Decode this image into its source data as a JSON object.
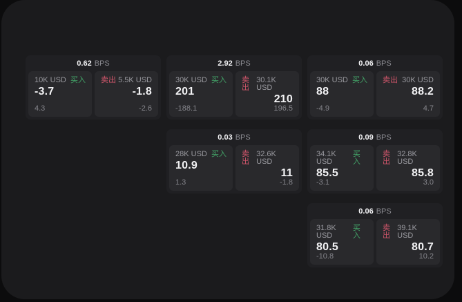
{
  "labels": {
    "bps_unit": "BPS",
    "buy": "买入",
    "sell": "卖出"
  },
  "colors": {
    "window_bg": "#1b1b1d",
    "card_bg": "#202023",
    "panel_bg": "#29292c",
    "buy_green": "#43a368",
    "sell_red": "#d0566b"
  },
  "cards": [
    {
      "bps": "0.62",
      "buy": {
        "amount": "10K USD",
        "price": "-3.7",
        "sub": "4.3"
      },
      "sell": {
        "amount": "5.5K USD",
        "price": "-1.8",
        "sub": "-2.6"
      }
    },
    {
      "bps": "2.92",
      "buy": {
        "amount": "30K USD",
        "price": "201",
        "sub": "-188.1"
      },
      "sell": {
        "amount": "30.1K USD",
        "price": "210",
        "sub": "196.5"
      }
    },
    {
      "bps": "0.06",
      "buy": {
        "amount": "30K USD",
        "price": "88",
        "sub": "-4.9"
      },
      "sell": {
        "amount": "30K USD",
        "price": "88.2",
        "sub": "4.7"
      }
    },
    {
      "bps": "0.03",
      "buy": {
        "amount": "28K USD",
        "price": "10.9",
        "sub": "1.3"
      },
      "sell": {
        "amount": "32.6K USD",
        "price": "11",
        "sub": "-1.8"
      }
    },
    {
      "bps": "0.09",
      "buy": {
        "amount": "34.1K USD",
        "price": "85.5",
        "sub": "-3.1"
      },
      "sell": {
        "amount": "32.8K USD",
        "price": "85.8",
        "sub": "3.0"
      }
    },
    {
      "bps": "0.06",
      "buy": {
        "amount": "31.8K USD",
        "price": "80.5",
        "sub": "-10.8"
      },
      "sell": {
        "amount": "39.1K USD",
        "price": "80.7",
        "sub": "10.2"
      }
    }
  ]
}
